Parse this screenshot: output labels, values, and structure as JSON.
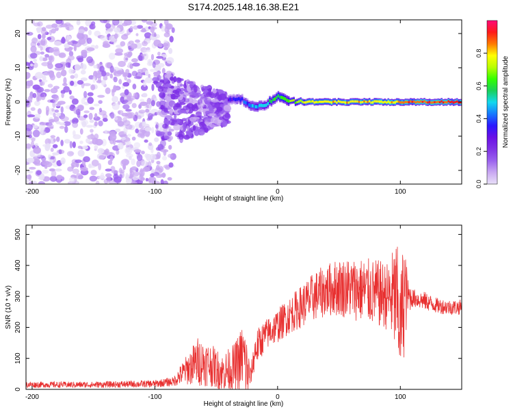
{
  "figure": {
    "title": "S174.2025.148.16.38.E21"
  },
  "colors": {
    "snr_line": "#e83030",
    "background": "#ffffff",
    "axes": "#000000",
    "colormap": [
      "#e8e0f8",
      "#c9a8f2",
      "#9b62ee",
      "#7f33e6",
      "#6a10e6",
      "#2b18ff",
      "#1778ff",
      "#12d8ee",
      "#1ad05a",
      "#33ff00",
      "#b8ff00",
      "#ffff00",
      "#ff7a00",
      "#ff1a1a",
      "#ff0a78"
    ]
  },
  "chart_data": [
    {
      "type": "heatmap",
      "title": "S174.2025.148.16.38.E21",
      "xlabel": "Height of straight line (km)",
      "ylabel": "Frequency (Hz)",
      "xlim": [
        -205,
        150
      ],
      "ylim": [
        -24,
        24
      ],
      "xticks": [
        -200,
        -100,
        0,
        100
      ],
      "yticks": [
        -20,
        -10,
        0,
        10,
        20
      ],
      "colorbar": {
        "label": "Normalized spectral amplitude",
        "range": [
          0.0,
          1.0
        ],
        "ticks": [
          0.0,
          0.2,
          0.4,
          0.6,
          0.8
        ]
      },
      "ridge": {
        "x": [
          -40,
          -30,
          -20,
          -10,
          0,
          10,
          20,
          40,
          60,
          80,
          100,
          120,
          150
        ],
        "frequency": [
          0.5,
          1,
          -1.5,
          -1,
          1.8,
          0.3,
          0,
          0,
          0,
          0,
          0,
          0,
          0
        ],
        "peak_amplitude": [
          0.3,
          0.35,
          0.45,
          0.5,
          0.6,
          0.65,
          0.75,
          0.8,
          0.8,
          0.8,
          0.85,
          0.9,
          0.9
        ]
      },
      "noise_region": {
        "x": [
          -205,
          -85
        ],
        "frequency": [
          -24,
          24
        ],
        "amplitude": [
          0.02,
          0.15
        ]
      },
      "transition_region": {
        "x": [
          -100,
          -40
        ],
        "frequency": [
          -14,
          10
        ],
        "amplitude": [
          0.05,
          0.25
        ]
      }
    },
    {
      "type": "line",
      "xlabel": "Height of straight line (km)",
      "ylabel": "SNR (10 * v/v)",
      "xlim": [
        -205,
        150
      ],
      "ylim": [
        0,
        530
      ],
      "xticks": [
        -200,
        -100,
        0,
        100
      ],
      "yticks": [
        0,
        100,
        200,
        300,
        400,
        500
      ],
      "envelope": {
        "x": [
          -205,
          -150,
          -100,
          -85,
          -75,
          -65,
          -55,
          -45,
          -35,
          -28,
          -25,
          -22,
          -18,
          -10,
          0,
          10,
          20,
          30,
          40,
          50,
          60,
          70,
          80,
          90,
          97,
          100,
          103,
          106,
          110,
          120,
          130,
          140,
          150
        ],
        "mean": [
          15,
          15,
          18,
          25,
          60,
          90,
          80,
          55,
          70,
          110,
          60,
          40,
          130,
          175,
          205,
          240,
          270,
          300,
          320,
          330,
          325,
          320,
          310,
          300,
          290,
          200,
          310,
          300,
          295,
          285,
          270,
          265,
          265
        ],
        "spread": [
          10,
          10,
          12,
          15,
          45,
          80,
          70,
          60,
          80,
          110,
          110,
          30,
          60,
          50,
          55,
          60,
          70,
          80,
          85,
          95,
          100,
          105,
          110,
          110,
          200,
          160,
          210,
          60,
          30,
          30,
          25,
          25,
          25
        ]
      }
    }
  ]
}
